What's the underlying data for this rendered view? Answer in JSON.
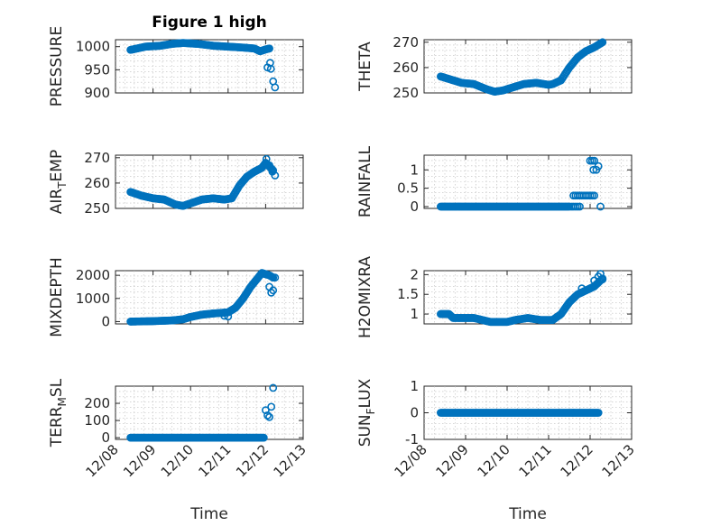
{
  "marker_color": "#0072BD",
  "chart_data": [
    {
      "type": "scatter",
      "title": "Figure 1 high",
      "ylabel": "PRESSURE",
      "xlabel": "",
      "xlim": [
        0,
        5
      ],
      "ylim": [
        900,
        1015
      ],
      "yticks": [
        900,
        950,
        1000
      ],
      "xticks": [],
      "grid": true,
      "series": [
        {
          "anchors": [
            [
              0.4,
              993
            ],
            [
              0.8,
              1000
            ],
            [
              1.2,
              1002
            ],
            [
              1.5,
              1006
            ],
            [
              1.8,
              1008
            ],
            [
              2.2,
              1006
            ],
            [
              2.6,
              1002
            ],
            [
              3.0,
              1000
            ],
            [
              3.4,
              998
            ],
            [
              3.7,
              996
            ],
            [
              3.85,
              990
            ],
            [
              4.0,
              994
            ],
            [
              4.1,
              996
            ]
          ],
          "step": 0.025,
          "extra": [
            [
              4.05,
              955
            ],
            [
              4.12,
              965
            ],
            [
              4.14,
              952
            ],
            [
              4.2,
              925
            ],
            [
              4.25,
              912
            ]
          ]
        }
      ]
    },
    {
      "type": "scatter",
      "title": "",
      "ylabel": "THETA",
      "xlabel": "",
      "xlim": [
        0,
        5
      ],
      "ylim": [
        250,
        271
      ],
      "yticks": [
        250,
        260,
        270
      ],
      "xticks": [],
      "grid": true,
      "series": [
        {
          "anchors": [
            [
              0.4,
              256.5
            ],
            [
              0.6,
              255.5
            ],
            [
              0.9,
              254
            ],
            [
              1.2,
              253.5
            ],
            [
              1.5,
              251.5
            ],
            [
              1.7,
              250.5
            ],
            [
              1.9,
              251
            ],
            [
              2.1,
              252
            ],
            [
              2.4,
              253.5
            ],
            [
              2.7,
              254
            ],
            [
              3.0,
              253.2
            ],
            [
              3.1,
              253.5
            ],
            [
              3.3,
              255
            ],
            [
              3.5,
              260
            ],
            [
              3.7,
              264
            ],
            [
              3.9,
              266.5
            ],
            [
              4.1,
              268
            ],
            [
              4.3,
              270
            ]
          ],
          "step": 0.025,
          "extra": []
        }
      ]
    },
    {
      "type": "scatter",
      "title": "",
      "ylabel": "AIR_TEMP",
      "ylabel_sub": "T",
      "xlabel": "",
      "xlim": [
        0,
        5
      ],
      "ylim": [
        250,
        271
      ],
      "yticks": [
        250,
        260,
        270
      ],
      "xticks": [],
      "grid": true,
      "series": [
        {
          "anchors": [
            [
              0.4,
              256.5
            ],
            [
              0.7,
              255
            ],
            [
              1.0,
              254
            ],
            [
              1.3,
              253.5
            ],
            [
              1.6,
              251.5
            ],
            [
              1.8,
              251
            ],
            [
              2.0,
              252
            ],
            [
              2.3,
              253.5
            ],
            [
              2.6,
              254
            ],
            [
              2.9,
              253.5
            ],
            [
              3.1,
              254
            ],
            [
              3.3,
              259
            ],
            [
              3.5,
              262.5
            ],
            [
              3.7,
              264.5
            ],
            [
              3.9,
              266
            ],
            [
              4.0,
              268
            ],
            [
              4.1,
              266.5
            ],
            [
              4.2,
              265
            ]
          ],
          "step": 0.025,
          "extra": [
            [
              4.02,
              269.5
            ],
            [
              4.1,
              267
            ],
            [
              4.18,
              264.5
            ],
            [
              4.25,
              263
            ]
          ]
        }
      ]
    },
    {
      "type": "scatter",
      "title": "",
      "ylabel": "RAINFALL",
      "xlabel": "",
      "xlim": [
        0,
        5
      ],
      "ylim": [
        -0.05,
        1.4
      ],
      "yticks": [
        0,
        0.5,
        1
      ],
      "xticks": [],
      "grid": true,
      "series": [
        {
          "anchors": [
            [
              0.4,
              0
            ],
            [
              3.5,
              0
            ]
          ],
          "step": 0.025,
          "extra": [
            [
              3.6,
              0.3
            ],
            [
              3.65,
              0.3
            ],
            [
              3.7,
              0.3
            ],
            [
              3.75,
              0.3
            ],
            [
              3.8,
              0.3
            ],
            [
              3.85,
              0.3
            ],
            [
              3.9,
              0.3
            ],
            [
              3.95,
              0.3
            ],
            [
              4.0,
              0.3
            ],
            [
              4.05,
              0.3
            ],
            [
              4.1,
              0.3
            ],
            [
              3.55,
              0
            ],
            [
              3.6,
              0
            ],
            [
              3.65,
              0
            ],
            [
              3.7,
              0
            ],
            [
              3.75,
              0
            ],
            [
              4.0,
              1.25
            ],
            [
              4.05,
              1.25
            ],
            [
              4.1,
              1.25
            ],
            [
              4.08,
              1.0
            ],
            [
              4.15,
              1.0
            ],
            [
              4.2,
              1.1
            ],
            [
              4.25,
              0
            ]
          ]
        }
      ]
    },
    {
      "type": "scatter",
      "title": "",
      "ylabel": "MIXDEPTH",
      "xlabel": "",
      "xlim": [
        0,
        5
      ],
      "ylim": [
        -100,
        2200
      ],
      "yticks": [
        0,
        1000,
        2000
      ],
      "xticks": [],
      "grid": true,
      "series": [
        {
          "anchors": [
            [
              0.4,
              0
            ],
            [
              1.0,
              20
            ],
            [
              1.5,
              50
            ],
            [
              1.8,
              100
            ],
            [
              2.0,
              200
            ],
            [
              2.3,
              300
            ],
            [
              2.6,
              350
            ],
            [
              3.0,
              400
            ],
            [
              3.2,
              600
            ],
            [
              3.4,
              1000
            ],
            [
              3.6,
              1500
            ],
            [
              3.8,
              1900
            ],
            [
              3.9,
              2100
            ],
            [
              4.1,
              2000
            ],
            [
              4.2,
              1900
            ]
          ],
          "step": 0.025,
          "extra": [
            [
              2.9,
              250
            ],
            [
              3.0,
              220
            ],
            [
              4.0,
              2050
            ],
            [
              4.1,
              1500
            ],
            [
              4.15,
              1250
            ],
            [
              4.2,
              1350
            ],
            [
              4.25,
              1900
            ]
          ]
        }
      ]
    },
    {
      "type": "scatter",
      "title": "",
      "ylabel": "H2OMIXRA",
      "xlabel": "",
      "xlim": [
        0,
        5
      ],
      "ylim": [
        0.75,
        2.1
      ],
      "yticks": [
        1,
        1.5,
        2
      ],
      "xticks": [],
      "grid": true,
      "series": [
        {
          "anchors": [
            [
              0.4,
              1.0
            ],
            [
              0.6,
              1.0
            ],
            [
              0.7,
              0.9
            ],
            [
              1.2,
              0.9
            ],
            [
              1.4,
              0.85
            ],
            [
              1.6,
              0.8
            ],
            [
              2.0,
              0.8
            ],
            [
              2.2,
              0.85
            ],
            [
              2.5,
              0.9
            ],
            [
              2.8,
              0.85
            ],
            [
              3.1,
              0.85
            ],
            [
              3.3,
              1.0
            ],
            [
              3.5,
              1.3
            ],
            [
              3.7,
              1.5
            ],
            [
              3.9,
              1.6
            ],
            [
              4.1,
              1.7
            ],
            [
              4.3,
              1.9
            ]
          ],
          "step": 0.025,
          "extra": [
            [
              3.8,
              1.65
            ],
            [
              4.0,
              1.65
            ],
            [
              4.1,
              1.85
            ],
            [
              4.2,
              1.95
            ],
            [
              4.25,
              2.02
            ],
            [
              4.3,
              1.88
            ]
          ]
        }
      ]
    },
    {
      "type": "scatter",
      "title": "",
      "ylabel": "TERR_MSL",
      "ylabel_sub": "M",
      "xlabel": "Time",
      "xlim": [
        0,
        5
      ],
      "ylim": [
        -10,
        300
      ],
      "yticks": [
        0,
        100,
        200
      ],
      "xticks": [
        "12/08",
        "12/09",
        "12/10",
        "12/11",
        "12/12",
        "12/13"
      ],
      "grid": true,
      "series": [
        {
          "anchors": [
            [
              0.4,
              0
            ],
            [
              3.95,
              0
            ]
          ],
          "step": 0.025,
          "extra": [
            [
              4.0,
              160
            ],
            [
              4.05,
              130
            ],
            [
              4.1,
              120
            ],
            [
              4.15,
              180
            ],
            [
              4.2,
              290
            ]
          ]
        }
      ]
    },
    {
      "type": "scatter",
      "title": "",
      "ylabel": "SUN_FLUX",
      "ylabel_sub": "F",
      "xlabel": "Time",
      "xlim": [
        0,
        5
      ],
      "ylim": [
        -1,
        1
      ],
      "yticks": [
        -1,
        0,
        1
      ],
      "xticks": [
        "12/08",
        "12/09",
        "12/10",
        "12/11",
        "12/12",
        "12/13"
      ],
      "grid": true,
      "series": [
        {
          "anchors": [
            [
              0.4,
              0
            ],
            [
              4.2,
              0
            ]
          ],
          "step": 0.025,
          "extra": []
        }
      ]
    }
  ]
}
